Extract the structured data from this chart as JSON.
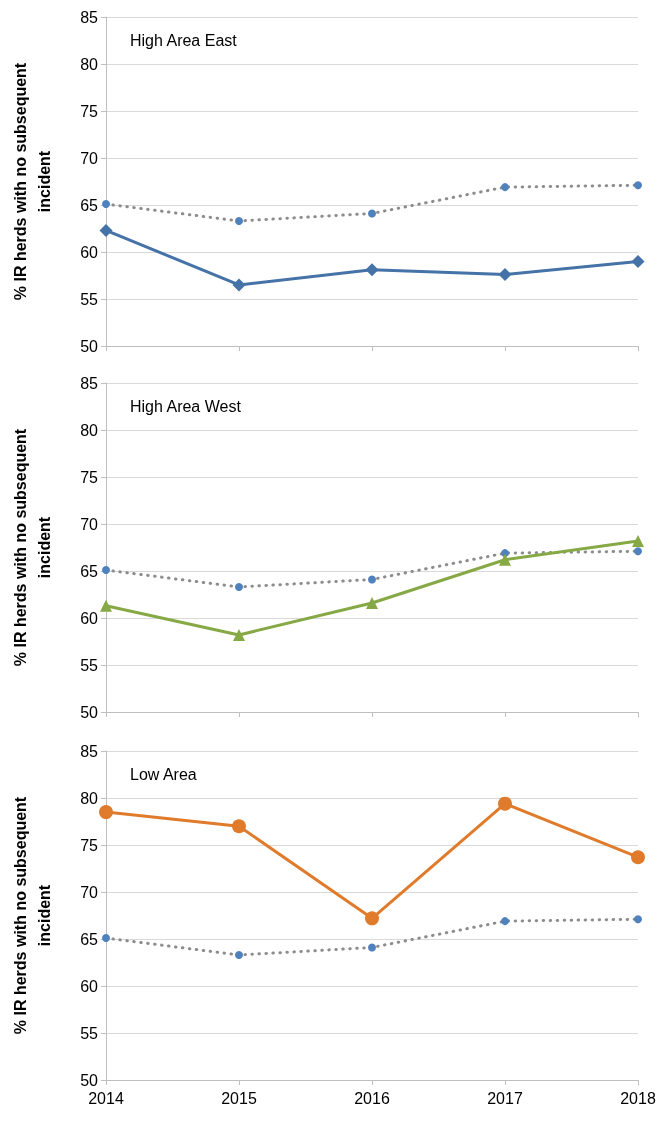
{
  "chart_data": [
    {
      "type": "line",
      "title": "High Area East",
      "ylabel": "% IR herds with no subsequent incident",
      "categories": [
        "2014",
        "2015",
        "2016",
        "2017",
        "2018"
      ],
      "ylim": [
        50,
        85
      ],
      "yticks": [
        50,
        55,
        60,
        65,
        70,
        75,
        80,
        85
      ],
      "grid": "y",
      "tick_labels": "y",
      "series": [
        {
          "color": "#8c8c8c",
          "colors": [
            "#4f81bd",
            "#4f81bd",
            "#4f81bd",
            "#4f81bd",
            "#4f81bd"
          ],
          "marker": "circle",
          "line_style": "dotted",
          "values": [
            65.1,
            63.3,
            64.1,
            66.9,
            67.1
          ]
        },
        {
          "color": "#4572a7",
          "marker": "diamond",
          "line_style": "solid",
          "values": [
            62.3,
            56.5,
            58.1,
            57.6,
            59.0
          ]
        }
      ]
    },
    {
      "type": "line",
      "title": "High Area West",
      "ylabel": "% IR herds with no subsequent incident",
      "categories": [
        "2014",
        "2015",
        "2016",
        "2017",
        "2018"
      ],
      "ylim": [
        50,
        85
      ],
      "yticks": [
        50,
        55,
        60,
        65,
        70,
        75,
        80,
        85
      ],
      "grid": "y",
      "tick_labels": "y",
      "series": [
        {
          "color": "#8c8c8c",
          "colors": [
            "#4f81bd",
            "#4f81bd",
            "#4f81bd",
            "#4f81bd",
            "#4f81bd"
          ],
          "marker": "circle",
          "line_style": "dotted",
          "values": [
            65.1,
            63.3,
            64.1,
            66.9,
            67.1
          ]
        },
        {
          "color": "#86a845",
          "marker": "triangle",
          "line_style": "solid",
          "values": [
            61.3,
            58.2,
            61.6,
            66.2,
            68.2
          ]
        }
      ]
    },
    {
      "type": "line",
      "title": "Low Area",
      "ylabel": "% IR herds with no subsequent incident",
      "categories": [
        "2014",
        "2015",
        "2016",
        "2017",
        "2018"
      ],
      "ylim": [
        50,
        85
      ],
      "yticks": [
        50,
        55,
        60,
        65,
        70,
        75,
        80,
        85
      ],
      "grid": "y",
      "series": [
        {
          "color": "#8c8c8c",
          "colors": [
            "#4f81bd",
            "#4f81bd",
            "#4f81bd",
            "#4f81bd",
            "#4f81bd"
          ],
          "marker": "circle",
          "line_style": "dotted",
          "values": [
            65.1,
            63.3,
            64.1,
            66.9,
            67.1
          ]
        },
        {
          "color": "#e07b2c",
          "marker": "circle",
          "line_style": "solid",
          "values": [
            78.5,
            77.0,
            67.2,
            79.4,
            73.7
          ]
        }
      ]
    }
  ]
}
